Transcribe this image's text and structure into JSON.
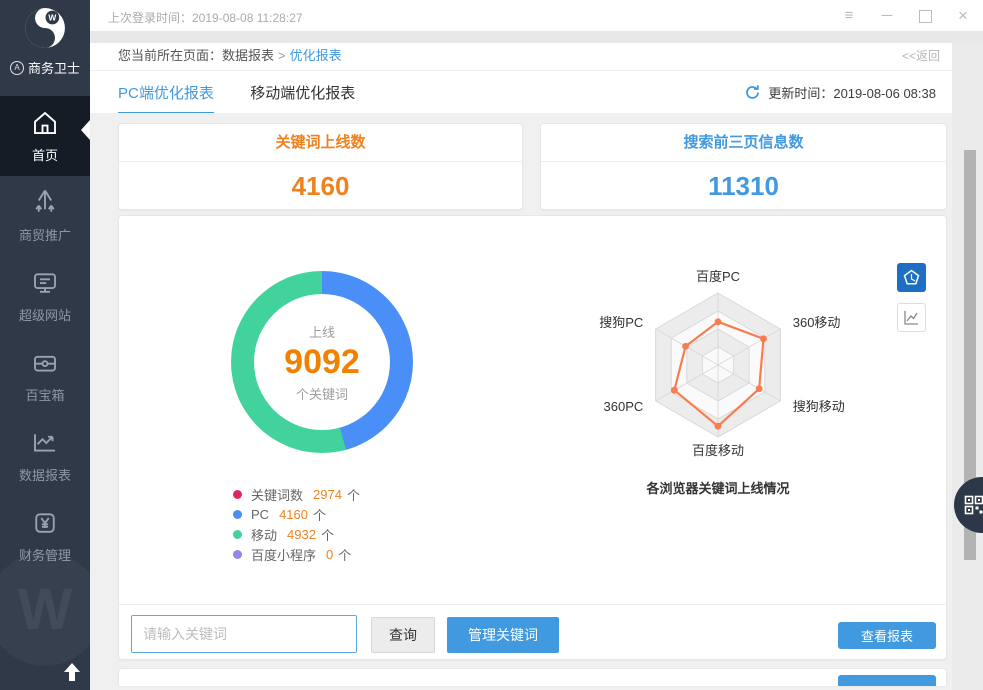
{
  "topbar": {
    "last_login": "上次登录时间：2019-08-08 11:28:27"
  },
  "sidebar": {
    "brand": "商务卫士",
    "logo_letter": "W",
    "badge_letter": "A",
    "items": [
      {
        "label": "首页",
        "active": true
      },
      {
        "label": "商贸推广",
        "active": false
      },
      {
        "label": "超级网站",
        "active": false
      },
      {
        "label": "百宝箱",
        "active": false
      },
      {
        "label": "数据报表",
        "active": false
      },
      {
        "label": "财务管理",
        "active": false
      }
    ]
  },
  "breadcrumb": {
    "prefix": "您当前所在页面：",
    "parent": "数据报表",
    "sep": ">",
    "current": "优化报表",
    "back": "<<返回"
  },
  "tabs": {
    "pc": "PC端优化报表",
    "mobile": "移动端优化报表"
  },
  "refresh": {
    "update_time": "更新时间：2019-08-06 08:38"
  },
  "stat_cards": [
    {
      "title": "关键词上线数",
      "value": "4160",
      "accent": "#f0821e"
    },
    {
      "title": "搜索前三页信息数",
      "value": "11310",
      "accent": "#4199e0"
    }
  ],
  "donut_center": {
    "top": "上线",
    "value": "9092",
    "bottom": "个关键词",
    "value_color": "#f08200"
  },
  "legend": [
    {
      "label": "关键词数",
      "value": "2974",
      "unit": "个",
      "color": "#e0265e"
    },
    {
      "label": "PC",
      "value": "4160",
      "unit": "个",
      "color": "#4a8ef7"
    },
    {
      "label": "移动",
      "value": "4932",
      "unit": "个",
      "color": "#42d39c"
    },
    {
      "label": "百度小程序",
      "value": "0",
      "unit": "个",
      "color": "#9287e7"
    }
  ],
  "radar_caption": "各浏览器关键词上线情况",
  "search": {
    "placeholder": "请输入关键词",
    "query": "查询",
    "manage": "管理关键词",
    "view_report": "查看报表"
  },
  "chart_data": [
    {
      "type": "pie",
      "subtype": "donut",
      "title": "上线关键词数",
      "center_label": [
        "上线",
        "9092",
        "个关键词"
      ],
      "total": 9092,
      "start_angle_deg": 0,
      "direction": "clockwise",
      "series": [
        {
          "name": "PC",
          "value": 4160,
          "color": "#4a8ef7"
        },
        {
          "name": "移动",
          "value": 4932,
          "color": "#42d39c"
        }
      ]
    },
    {
      "type": "radar",
      "title": "各浏览器关键词上线情况",
      "axes": [
        "百度PC",
        "360移动",
        "搜狗移动",
        "百度移动",
        "360PC",
        "搜狗PC"
      ],
      "values_fraction_of_max": [
        0.6,
        0.73,
        0.66,
        0.85,
        0.7,
        0.52
      ],
      "rings": 4,
      "line_color": "#f97c50",
      "grid_line_color": "#d9d9d9",
      "ring_fills": [
        "#fafafa",
        "#ececec"
      ],
      "legend_position": "none"
    }
  ]
}
